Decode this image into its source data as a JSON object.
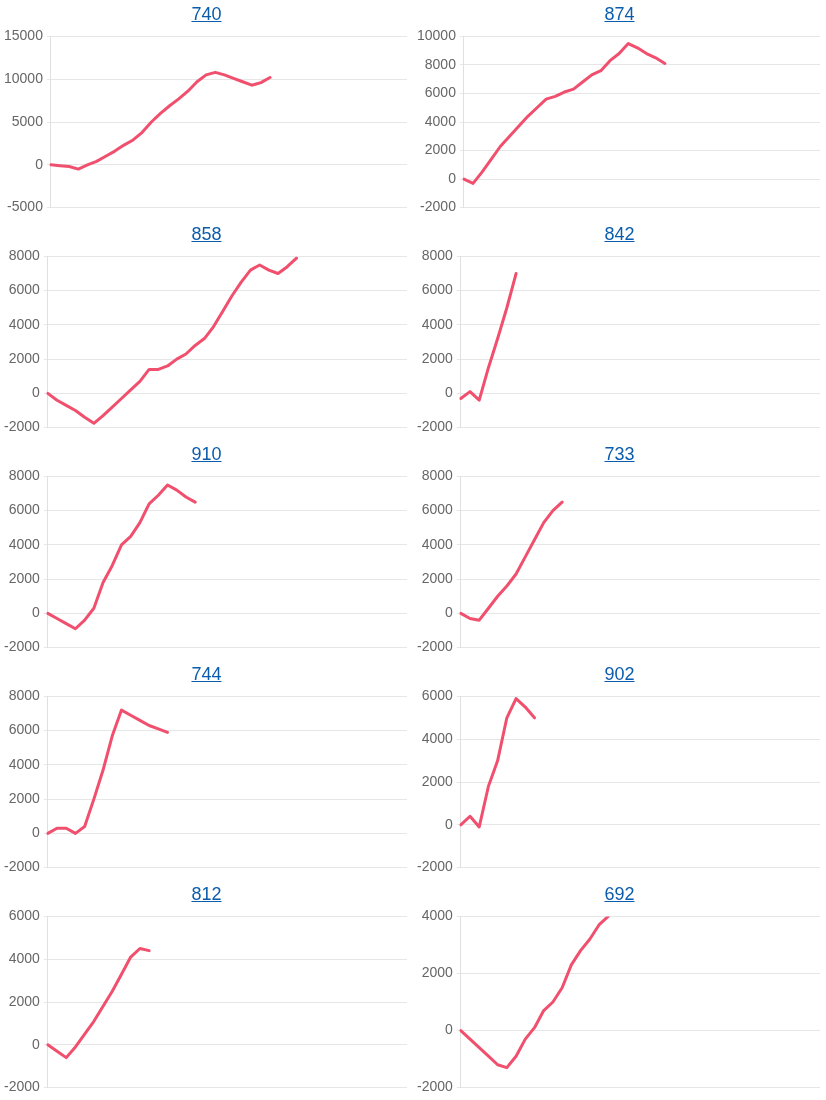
{
  "chart_data": [
    {
      "type": "line",
      "title": "740",
      "categories": [
        null,
        null,
        null,
        null,
        null,
        null,
        null,
        null,
        null,
        null,
        null,
        null,
        null,
        null,
        null,
        null,
        null,
        null,
        null,
        null,
        null,
        null,
        null,
        null,
        null,
        null,
        null,
        null,
        null,
        null,
        null,
        null,
        null,
        null,
        null,
        null,
        null,
        null,
        null,
        null
      ],
      "series": [
        {
          "color": "#f0506e",
          "values": [
            0,
            -100,
            -200,
            -500,
            0,
            400,
            1000,
            1600,
            2300,
            2900,
            3800,
            5000,
            6000,
            6900,
            7700,
            8600,
            9700,
            10500,
            10800,
            10500,
            10100,
            9700,
            9300,
            9600,
            10200,
            null,
            null,
            null,
            null,
            null,
            null,
            null,
            null,
            null,
            null,
            null,
            null,
            null,
            null,
            null
          ]
        }
      ],
      "ylim": [
        -5000,
        15000
      ],
      "yticks": [
        -5000,
        0,
        5000,
        10000,
        15000
      ],
      "grid": "y",
      "tick_labels": "y",
      "marker": "none",
      "line_style": "solid",
      "legend": false
    },
    {
      "type": "line",
      "title": "874",
      "categories": [
        null,
        null,
        null,
        null,
        null,
        null,
        null,
        null,
        null,
        null,
        null,
        null,
        null,
        null,
        null,
        null,
        null,
        null,
        null,
        null,
        null,
        null,
        null,
        null,
        null,
        null,
        null,
        null,
        null,
        null,
        null,
        null,
        null,
        null,
        null,
        null,
        null,
        null,
        null,
        null
      ],
      "series": [
        {
          "color": "#f0506e",
          "values": [
            0,
            -300,
            500,
            1400,
            2300,
            3000,
            3700,
            4400,
            5000,
            5600,
            5800,
            6100,
            6300,
            6800,
            7300,
            7600,
            8300,
            8800,
            9500,
            9200,
            8800,
            8500,
            8100,
            null,
            null,
            null,
            null,
            null,
            null,
            null,
            null,
            null,
            null,
            null,
            null,
            null,
            null,
            null,
            null,
            null
          ]
        }
      ],
      "ylim": [
        -2000,
        10000
      ],
      "yticks": [
        -2000,
        0,
        2000,
        4000,
        6000,
        8000,
        10000
      ],
      "grid": "y",
      "tick_labels": "y",
      "marker": "none",
      "line_style": "solid",
      "legend": false
    },
    {
      "type": "line",
      "title": "858",
      "categories": [
        null,
        null,
        null,
        null,
        null,
        null,
        null,
        null,
        null,
        null,
        null,
        null,
        null,
        null,
        null,
        null,
        null,
        null,
        null,
        null,
        null,
        null,
        null,
        null,
        null,
        null,
        null,
        null,
        null,
        null,
        null,
        null,
        null,
        null,
        null,
        null,
        null,
        null,
        null,
        null
      ],
      "series": [
        {
          "color": "#f0506e",
          "values": [
            0,
            -400,
            -700,
            -1000,
            -1400,
            -1750,
            -1300,
            -800,
            -300,
            200,
            700,
            1400,
            1400,
            1600,
            2000,
            2300,
            2800,
            3200,
            3900,
            4800,
            5700,
            6500,
            7200,
            7500,
            7200,
            7000,
            7400,
            7900,
            null,
            null,
            null,
            null,
            null,
            null,
            null,
            null,
            null,
            null,
            null,
            null
          ]
        }
      ],
      "ylim": [
        -2000,
        8000
      ],
      "yticks": [
        -2000,
        0,
        2000,
        4000,
        6000,
        8000
      ],
      "grid": "y",
      "tick_labels": "y",
      "marker": "none",
      "line_style": "solid",
      "legend": false
    },
    {
      "type": "line",
      "title": "842",
      "categories": [
        null,
        null,
        null,
        null,
        null,
        null,
        null,
        null,
        null,
        null,
        null,
        null,
        null,
        null,
        null,
        null,
        null,
        null,
        null,
        null,
        null,
        null,
        null,
        null,
        null,
        null,
        null,
        null,
        null,
        null,
        null,
        null,
        null,
        null,
        null,
        null,
        null,
        null,
        null,
        null
      ],
      "series": [
        {
          "color": "#f0506e",
          "values": [
            -300,
            100,
            -400,
            1500,
            3200,
            5000,
            7000,
            null,
            null,
            null,
            null,
            null,
            null,
            null,
            null,
            null,
            null,
            null,
            null,
            null,
            null,
            null,
            null,
            null,
            null,
            null,
            null,
            null,
            null,
            null,
            null,
            null,
            null,
            null,
            null,
            null,
            null,
            null,
            null,
            null
          ]
        }
      ],
      "ylim": [
        -2000,
        8000
      ],
      "yticks": [
        -2000,
        0,
        2000,
        4000,
        6000,
        8000
      ],
      "grid": "y",
      "tick_labels": "y",
      "marker": "none",
      "line_style": "solid",
      "legend": false
    },
    {
      "type": "line",
      "title": "910",
      "categories": [
        null,
        null,
        null,
        null,
        null,
        null,
        null,
        null,
        null,
        null,
        null,
        null,
        null,
        null,
        null,
        null,
        null,
        null,
        null,
        null,
        null,
        null,
        null,
        null,
        null,
        null,
        null,
        null,
        null,
        null,
        null,
        null,
        null,
        null,
        null,
        null,
        null,
        null,
        null,
        null
      ],
      "series": [
        {
          "color": "#f0506e",
          "values": [
            0,
            -300,
            -600,
            -900,
            -400,
            300,
            1800,
            2800,
            4000,
            4500,
            5300,
            6400,
            6900,
            7500,
            7200,
            6800,
            6500,
            null,
            null,
            null,
            null,
            null,
            null,
            null,
            null,
            null,
            null,
            null,
            null,
            null,
            null,
            null,
            null,
            null,
            null,
            null,
            null,
            null,
            null,
            null
          ]
        }
      ],
      "ylim": [
        -2000,
        8000
      ],
      "yticks": [
        -2000,
        0,
        2000,
        4000,
        6000,
        8000
      ],
      "grid": "y",
      "tick_labels": "y",
      "marker": "none",
      "line_style": "solid",
      "legend": false
    },
    {
      "type": "line",
      "title": "733",
      "categories": [
        null,
        null,
        null,
        null,
        null,
        null,
        null,
        null,
        null,
        null,
        null,
        null,
        null,
        null,
        null,
        null,
        null,
        null,
        null,
        null,
        null,
        null,
        null,
        null,
        null,
        null,
        null,
        null,
        null,
        null,
        null,
        null,
        null,
        null,
        null,
        null,
        null,
        null,
        null,
        null
      ],
      "series": [
        {
          "color": "#f0506e",
          "values": [
            0,
            -300,
            -400,
            300,
            1000,
            1600,
            2300,
            3300,
            4300,
            5300,
            6000,
            6500,
            null,
            null,
            null,
            null,
            null,
            null,
            null,
            null,
            null,
            null,
            null,
            null,
            null,
            null,
            null,
            null,
            null,
            null,
            null,
            null,
            null,
            null,
            null,
            null,
            null,
            null,
            null,
            null
          ]
        }
      ],
      "ylim": [
        -2000,
        8000
      ],
      "yticks": [
        -2000,
        0,
        2000,
        4000,
        6000,
        8000
      ],
      "grid": "y",
      "tick_labels": "y",
      "marker": "none",
      "line_style": "solid",
      "legend": false
    },
    {
      "type": "line",
      "title": "744",
      "categories": [
        null,
        null,
        null,
        null,
        null,
        null,
        null,
        null,
        null,
        null,
        null,
        null,
        null,
        null,
        null,
        null,
        null,
        null,
        null,
        null,
        null,
        null,
        null,
        null,
        null,
        null,
        null,
        null,
        null,
        null,
        null,
        null,
        null,
        null,
        null,
        null,
        null,
        null,
        null,
        null
      ],
      "series": [
        {
          "color": "#f0506e",
          "values": [
            0,
            300,
            300,
            0,
            400,
            2000,
            3700,
            5700,
            7200,
            6900,
            6600,
            6300,
            6100,
            5900,
            null,
            null,
            null,
            null,
            null,
            null,
            null,
            null,
            null,
            null,
            null,
            null,
            null,
            null,
            null,
            null,
            null,
            null,
            null,
            null,
            null,
            null,
            null,
            null,
            null,
            null
          ]
        }
      ],
      "ylim": [
        -2000,
        8000
      ],
      "yticks": [
        -2000,
        0,
        2000,
        4000,
        6000,
        8000
      ],
      "grid": "y",
      "tick_labels": "y",
      "marker": "none",
      "line_style": "solid",
      "legend": false
    },
    {
      "type": "line",
      "title": "902",
      "categories": [
        null,
        null,
        null,
        null,
        null,
        null,
        null,
        null,
        null,
        null,
        null,
        null,
        null,
        null,
        null,
        null,
        null,
        null,
        null,
        null,
        null,
        null,
        null,
        null,
        null,
        null,
        null,
        null,
        null,
        null,
        null,
        null,
        null,
        null,
        null,
        null,
        null,
        null,
        null,
        null
      ],
      "series": [
        {
          "color": "#f0506e",
          "values": [
            0,
            400,
            -100,
            1800,
            3000,
            5000,
            5900,
            5500,
            5000,
            null,
            null,
            null,
            null,
            null,
            null,
            null,
            null,
            null,
            null,
            null,
            null,
            null,
            null,
            null,
            null,
            null,
            null,
            null,
            null,
            null,
            null,
            null,
            null,
            null,
            null,
            null,
            null,
            null,
            null,
            null
          ]
        }
      ],
      "ylim": [
        -2000,
        6000
      ],
      "yticks": [
        -2000,
        0,
        2000,
        4000,
        6000
      ],
      "grid": "y",
      "tick_labels": "y",
      "marker": "none",
      "line_style": "solid",
      "legend": false
    },
    {
      "type": "line",
      "title": "812",
      "categories": [
        null,
        null,
        null,
        null,
        null,
        null,
        null,
        null,
        null,
        null,
        null,
        null,
        null,
        null,
        null,
        null,
        null,
        null,
        null,
        null,
        null,
        null,
        null,
        null,
        null,
        null,
        null,
        null,
        null,
        null,
        null,
        null,
        null,
        null,
        null,
        null,
        null,
        null,
        null,
        null
      ],
      "series": [
        {
          "color": "#f0506e",
          "values": [
            0,
            -300,
            -600,
            -100,
            500,
            1100,
            1800,
            2500,
            3300,
            4100,
            4500,
            4400,
            null,
            null,
            null,
            null,
            null,
            null,
            null,
            null,
            null,
            null,
            null,
            null,
            null,
            null,
            null,
            null,
            null,
            null,
            null,
            null,
            null,
            null,
            null,
            null,
            null,
            null,
            null,
            null
          ]
        }
      ],
      "ylim": [
        -2000,
        6000
      ],
      "yticks": [
        -2000,
        0,
        2000,
        4000,
        6000
      ],
      "grid": "y",
      "tick_labels": "y",
      "marker": "none",
      "line_style": "solid",
      "legend": false
    },
    {
      "type": "line",
      "title": "692",
      "categories": [
        null,
        null,
        null,
        null,
        null,
        null,
        null,
        null,
        null,
        null,
        null,
        null,
        null,
        null,
        null,
        null,
        null,
        null,
        null,
        null,
        null,
        null,
        null,
        null,
        null,
        null,
        null,
        null,
        null,
        null,
        null,
        null,
        null,
        null,
        null,
        null,
        null,
        null,
        null,
        null
      ],
      "series": [
        {
          "color": "#f0506e",
          "values": [
            0,
            -300,
            -600,
            -900,
            -1200,
            -1300,
            -900,
            -300,
            100,
            700,
            1000,
            1500,
            2300,
            2800,
            3200,
            3700,
            4000,
            null,
            null,
            null,
            null,
            null,
            null,
            null,
            null,
            null,
            null,
            null,
            null,
            null,
            null,
            null,
            null,
            null,
            null,
            null,
            null,
            null,
            null,
            null
          ]
        }
      ],
      "ylim": [
        -2000,
        4000
      ],
      "yticks": [
        -2000,
        0,
        2000,
        4000
      ],
      "grid": "y",
      "tick_labels": "y",
      "marker": "none",
      "line_style": "solid",
      "legend": false
    }
  ]
}
